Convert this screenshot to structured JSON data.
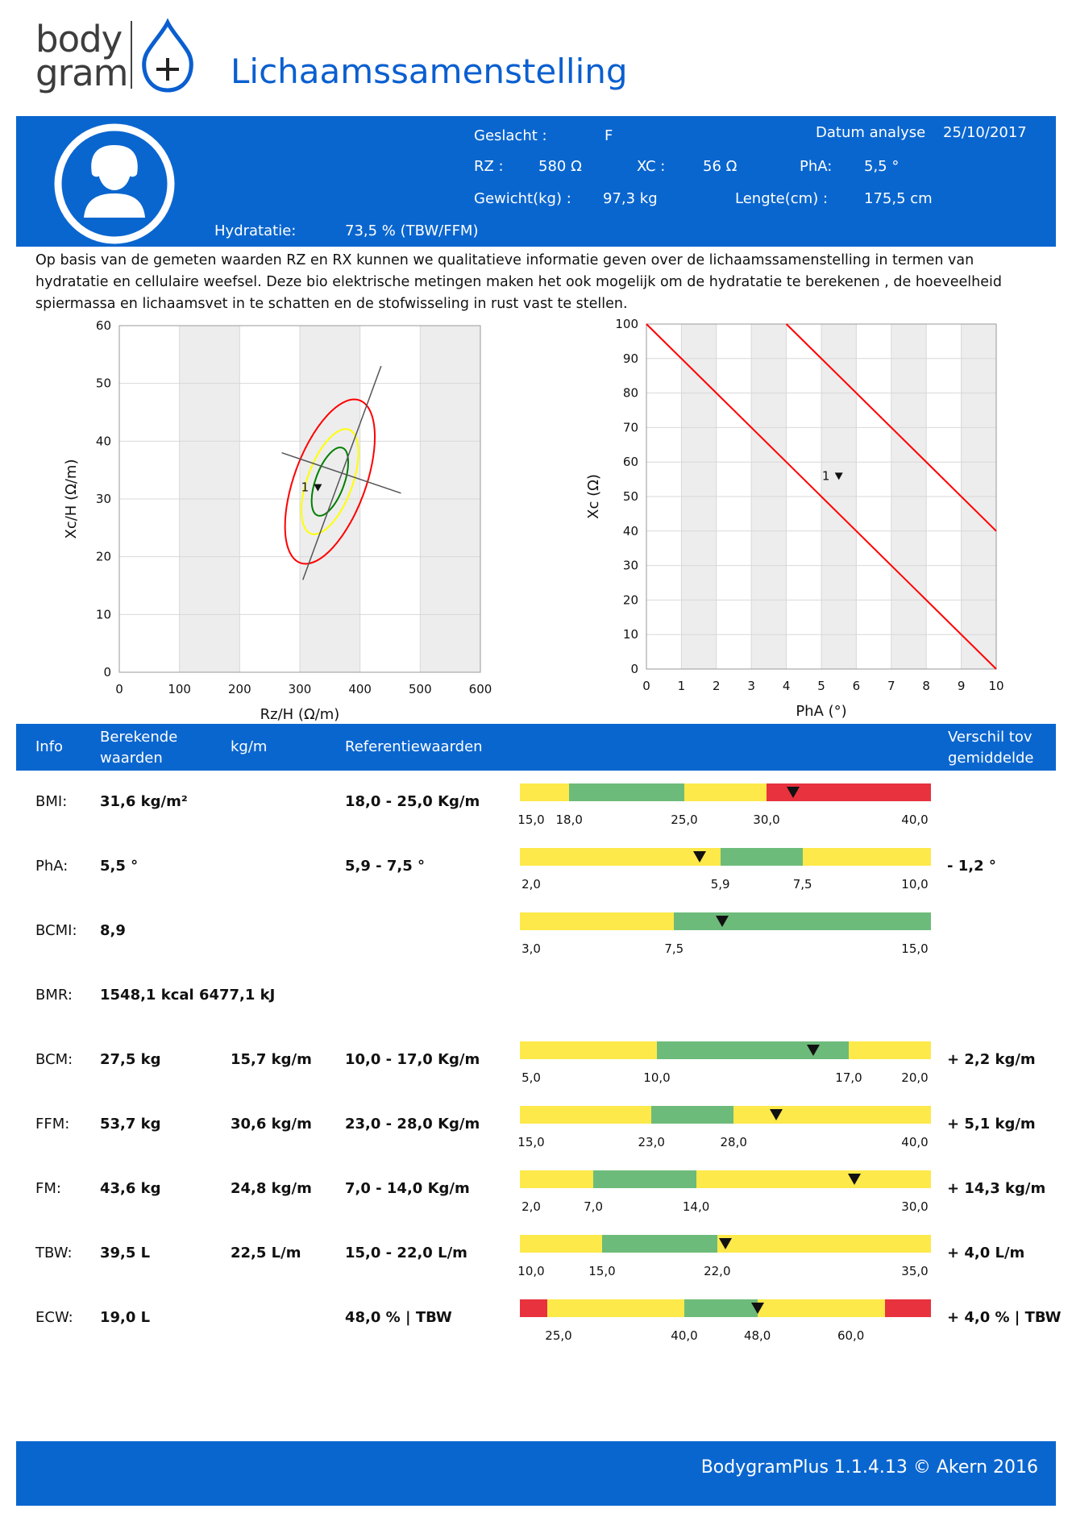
{
  "logo": {
    "line1": "body",
    "line2": "gram"
  },
  "title": "Lichaamssamenstelling",
  "patient": {
    "geslacht_label": "Geslacht :",
    "geslacht": "F",
    "datum_label": "Datum analyse",
    "datum": "25/10/2017",
    "rz_label": "RZ :",
    "rz": "580 Ω",
    "xc_label": "XC  :",
    "xc": "56 Ω",
    "pha_label": "PhA:",
    "pha": "5,5 °",
    "gewicht_label": "Gewicht(kg) :",
    "gewicht": "97,3 kg",
    "lengte_label": "Lengte(cm) :",
    "lengte": "175,5 cm",
    "hydratatie_label": "Hydratatie:",
    "hydratatie": "73,5 % (TBW/FFM)"
  },
  "intro": "Op basis van de gemeten waarden RZ en RX kunnen we qualitatieve informatie geven over de lichaamssamenstelling in termen van hydratatie en cellulaire weefsel. Deze bio elektrische metingen maken het ook mogelijk om de hydratatie te berekenen , de hoeveelheid spiermassa en lichaamsvet in te schatten en de stofwisseling in rust vast te stellen.",
  "chart_data": [
    {
      "type": "scatter",
      "xlabel": "Rz/H (Ω/m)",
      "ylabel": "Xc/H (Ω/m)",
      "xlim": [
        0,
        600
      ],
      "ylim": [
        0,
        60
      ],
      "xticks": [
        "0",
        "100",
        "200",
        "300",
        "400",
        "500",
        "600"
      ],
      "yticks": [
        "0",
        "10",
        "20",
        "30",
        "40",
        "50",
        "60"
      ],
      "points": [
        {
          "label": "1",
          "x": 330,
          "y": 32
        }
      ],
      "ellipses": [
        {
          "color": "#008000",
          "cx": 350,
          "cy": 33,
          "rx": 52,
          "ry": 14
        },
        {
          "color": "#ffff00",
          "cx": 350,
          "cy": 33,
          "rx": 80,
          "ry": 22
        },
        {
          "color": "#ff0000",
          "cx": 350,
          "cy": 33,
          "rx": 125,
          "ry": 35
        }
      ],
      "axes_lines": [
        {
          "x1": 305,
          "y1": 16,
          "x2": 435,
          "y2": 53
        },
        {
          "x1": 270,
          "y1": 38,
          "x2": 468,
          "y2": 31
        }
      ],
      "grid": true
    },
    {
      "type": "line",
      "xlabel": "PhA (°)",
      "ylabel": "Xc (Ω)",
      "xlim": [
        0,
        10
      ],
      "ylim": [
        0,
        100
      ],
      "xticks": [
        "0",
        "1",
        "2",
        "3",
        "4",
        "5",
        "6",
        "7",
        "8",
        "9",
        "10"
      ],
      "yticks": [
        "0",
        "10",
        "20",
        "30",
        "40",
        "50",
        "60",
        "70",
        "80",
        "90",
        "100"
      ],
      "points": [
        {
          "label": "1",
          "x": 5.5,
          "y": 56
        }
      ],
      "series": [
        {
          "x": [
            0,
            10
          ],
          "y": [
            100,
            0
          ],
          "color": "#ff0000"
        },
        {
          "x": [
            4,
            10
          ],
          "y": [
            100,
            40
          ],
          "color": "#ff0000"
        }
      ],
      "grid": true
    }
  ],
  "table": {
    "headers": {
      "info": "Info",
      "berekende_1": "Berekende",
      "berekende_2": "waarden",
      "kgm": "kg/m",
      "ref": "Referentiewaarden",
      "verschil_1": "Verschil tov",
      "verschil_2": "gemiddelde"
    },
    "rows": [
      {
        "label": "BMI:",
        "value": "31,6 kg/m²",
        "kgm": "",
        "ref": "18,0 -  25,0 Kg/m",
        "diff": "",
        "bar": {
          "min": 15,
          "max": 40,
          "segments": [
            [
              15,
              18,
              "yellow"
            ],
            [
              18,
              25,
              "green"
            ],
            [
              25,
              30,
              "yellow"
            ],
            [
              30,
              40,
              "red"
            ]
          ],
          "ticks": [
            "15,0",
            "18,0",
            "25,0",
            "30,0",
            "40,0"
          ],
          "tick_values": [
            15,
            18,
            25,
            30,
            40
          ],
          "marker": 31.6
        }
      },
      {
        "label": "PhA:",
        "value": "5,5 °",
        "kgm": "",
        "ref": "5,9 -   7,5 °",
        "diff": "- 1,2 °",
        "bar": {
          "min": 2,
          "max": 10,
          "segments": [
            [
              2,
              5.9,
              "yellow"
            ],
            [
              5.9,
              7.5,
              "green"
            ],
            [
              7.5,
              10,
              "yellow"
            ]
          ],
          "ticks": [
            "2,0",
            "5,9",
            "7,5",
            "10,0"
          ],
          "tick_values": [
            2,
            5.9,
            7.5,
            10
          ],
          "marker": 5.5
        }
      },
      {
        "label": "BCMI:",
        "value": "8,9",
        "kgm": "",
        "ref": "",
        "diff": "",
        "bar": {
          "min": 3,
          "max": 15,
          "segments": [
            [
              3,
              7.5,
              "yellow"
            ],
            [
              7.5,
              15,
              "green"
            ]
          ],
          "ticks": [
            "3,0",
            "7,5",
            "15,0"
          ],
          "tick_values": [
            3,
            7.5,
            15
          ],
          "marker": 8.9
        }
      },
      {
        "label": "BMR:",
        "value": "1548,1 kcal 6477,1 kJ",
        "kgm": "",
        "ref": "",
        "diff": "",
        "bar": null
      },
      {
        "label": "BCM:",
        "value": "27,5 kg",
        "kgm": "15,7 kg/m",
        "ref": "10,0 -  17,0 Kg/m",
        "diff": "+ 2,2 kg/m",
        "bar": {
          "min": 5,
          "max": 20,
          "segments": [
            [
              5,
              10,
              "yellow"
            ],
            [
              10,
              17,
              "green"
            ],
            [
              17,
              20,
              "yellow"
            ]
          ],
          "ticks": [
            "5,0",
            "10,0",
            "17,0",
            "20,0"
          ],
          "tick_values": [
            5,
            10,
            17,
            20
          ],
          "marker": 15.7
        }
      },
      {
        "label": "FFM:",
        "value": "53,7 kg",
        "kgm": "30,6 kg/m",
        "ref": "23,0 -  28,0 Kg/m",
        "diff": "+ 5,1 kg/m",
        "bar": {
          "min": 15,
          "max": 40,
          "segments": [
            [
              15,
              23,
              "yellow"
            ],
            [
              23,
              28,
              "green"
            ],
            [
              28,
              40,
              "yellow"
            ]
          ],
          "ticks": [
            "15,0",
            "23,0",
            "28,0",
            "40,0"
          ],
          "tick_values": [
            15,
            23,
            28,
            40
          ],
          "marker": 30.6
        }
      },
      {
        "label": "FM:",
        "value": "43,6 kg",
        "kgm": "24,8 kg/m",
        "ref": "7,0 -   14,0 Kg/m",
        "diff": "+ 14,3 kg/m",
        "bar": {
          "min": 2,
          "max": 30,
          "segments": [
            [
              2,
              7,
              "yellow"
            ],
            [
              7,
              14,
              "green"
            ],
            [
              14,
              30,
              "yellow"
            ]
          ],
          "ticks": [
            "2,0",
            "7,0",
            "14,0",
            "30,0"
          ],
          "tick_values": [
            2,
            7,
            14,
            30
          ],
          "marker": 24.8
        }
      },
      {
        "label": "TBW:",
        "value": "39,5 L",
        "kgm": "22,5 L/m",
        "ref": "15,0 -  22,0 L/m",
        "diff": "+ 4,0 L/m",
        "bar": {
          "min": 10,
          "max": 35,
          "segments": [
            [
              10,
              15,
              "yellow"
            ],
            [
              15,
              22,
              "green"
            ],
            [
              22,
              35,
              "yellow"
            ]
          ],
          "ticks": [
            "10,0",
            "15,0",
            "22,0",
            "35,0"
          ],
          "tick_values": [
            10,
            15,
            22,
            35
          ],
          "marker": 22.5
        }
      },
      {
        "label": "ECW:",
        "value": "19,0 L",
        "kgm": "",
        "ref": "48,0     % | TBW",
        "diff": "+ 4,0 % | TBW",
        "bar": {
          "min": 22,
          "max": 67,
          "segments": [
            [
              22,
              25,
              "red"
            ],
            [
              25,
              40,
              "yellow"
            ],
            [
              40,
              48,
              "green"
            ],
            [
              48,
              62,
              "yellow"
            ],
            [
              62,
              67,
              "red"
            ]
          ],
          "ticks": [
            "25,0",
            "40,0",
            "48,0",
            "60,0"
          ],
          "tick_values": [
            25,
            40,
            48,
            60
          ],
          "marker": 48
        }
      }
    ]
  },
  "footer": "BodygramPlus 1.1.4.13 © Akern 2016",
  "colors": {
    "blue": "#0a66cf",
    "yellow": "#fde94a",
    "green": "#6dbb7a",
    "red": "#e8323e"
  }
}
